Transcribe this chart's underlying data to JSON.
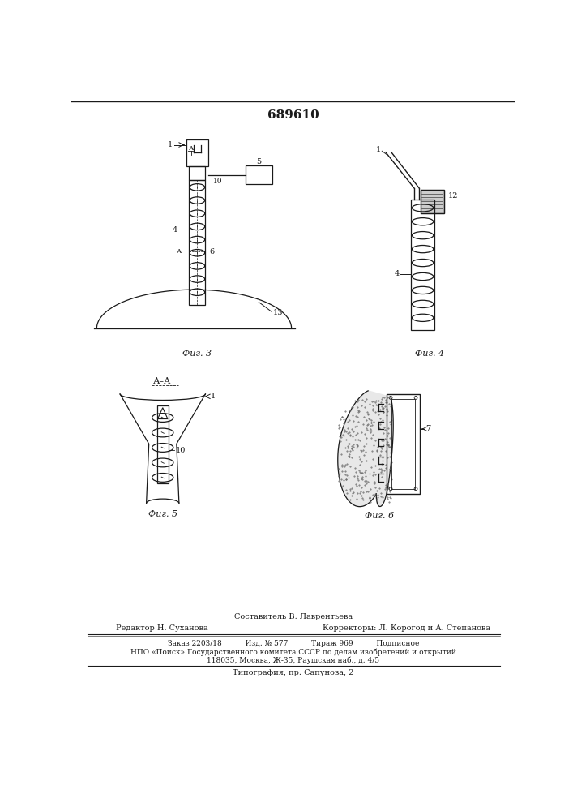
{
  "title": "689610",
  "bg_color": "#ffffff",
  "line_color": "#1a1a1a",
  "fig3_label": "Фиг. 3",
  "fig4_label": "Фиг. 4",
  "fig5_label": "Фиг. 5",
  "fig6_label": "Фиг. 6",
  "aa_label": "А–А",
  "bottom_text_1": "Составитель В. Лаврентьева",
  "bottom_text_2": "Редактор Н. Суханова",
  "bottom_text_3": "Корректоры: Л. Корогод и А. Степанова",
  "bottom_text_4": "Заказ 2203/18          Изд. № 577          Тираж 969          Подписное",
  "bottom_text_5": "НПО «Поиск» Государственного комитета СССР по делам изобретений и открытий",
  "bottom_text_6": "118035, Москва, Ж-35, Раушская наб., д. 4/5",
  "bottom_text_7": "Типография, пр. Сапунова, 2"
}
